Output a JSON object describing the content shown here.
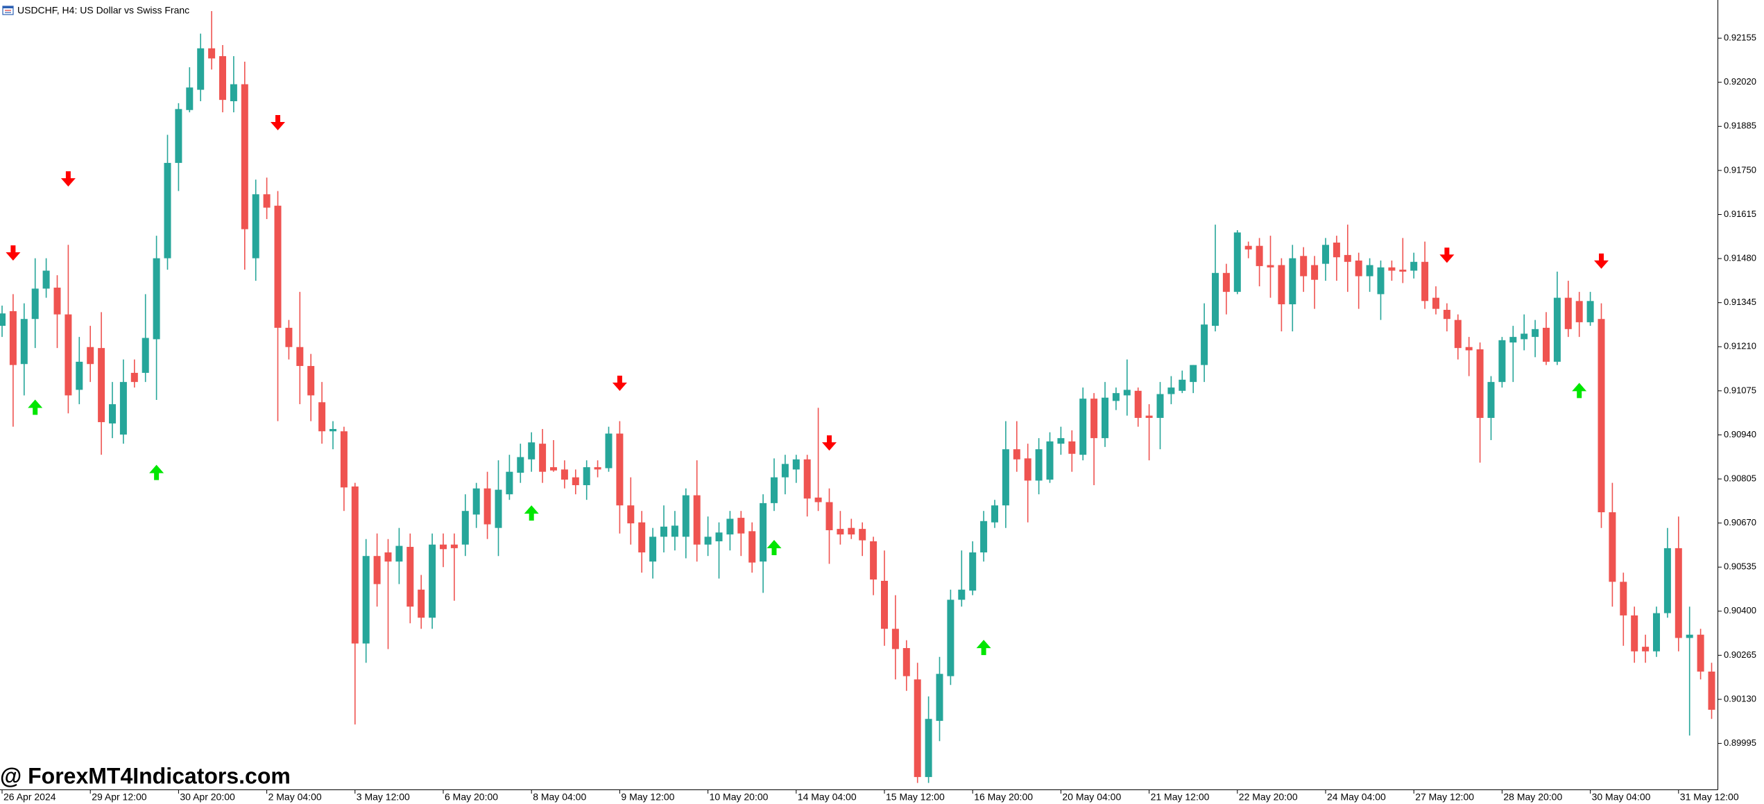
{
  "chart_data": {
    "type": "candlestick",
    "title": "USDCHF, H4:  US Dollar vs Swiss Franc",
    "watermark": "@ ForexMT4Indicators.com",
    "up_color": "#26a69a",
    "down_color": "#ef5350",
    "ylim": [
      0.89854,
      0.92272
    ],
    "yticks": [
      0.92155,
      {
        "value": 0.9202,
        "label": "0.92020"
      },
      0.91885,
      {
        "value": 0.9175,
        "label": "0.91750"
      },
      0.91615,
      {
        "value": 0.9148,
        "label": "0.91480"
      },
      0.91345,
      {
        "value": 0.9121,
        "label": "0.91210"
      },
      0.91075,
      {
        "value": 0.9094,
        "label": "0.90940"
      },
      0.90805,
      {
        "value": 0.9067,
        "label": "0.90670"
      },
      0.90535,
      {
        "value": 0.904,
        "label": "0.90400"
      },
      0.90265,
      {
        "value": 0.9013,
        "label": "0.90130"
      },
      0.89995
    ],
    "categories": [
      "26 Apr 2024",
      null,
      null,
      null,
      null,
      null,
      null,
      null,
      "29 Apr 12:00",
      null,
      null,
      null,
      null,
      null,
      null,
      null,
      "30 Apr 20:00",
      null,
      null,
      null,
      null,
      null,
      null,
      null,
      "2 May 04:00",
      null,
      null,
      null,
      null,
      null,
      null,
      null,
      "3 May 12:00",
      null,
      null,
      null,
      null,
      null,
      null,
      null,
      "6 May 20:00",
      null,
      null,
      null,
      null,
      null,
      null,
      null,
      "8 May 04:00",
      null,
      null,
      null,
      null,
      null,
      null,
      null,
      "9 May 12:00",
      null,
      null,
      null,
      null,
      null,
      null,
      null,
      "10 May 20:00",
      null,
      null,
      null,
      null,
      null,
      null,
      null,
      "14 May 04:00",
      null,
      null,
      null,
      null,
      null,
      null,
      null,
      "15 May 12:00",
      null,
      null,
      null,
      null,
      null,
      null,
      null,
      "16 May 20:00",
      null,
      null,
      null,
      null,
      null,
      null,
      null,
      "20 May 04:00",
      null,
      null,
      null,
      null,
      null,
      null,
      null,
      "21 May 12:00",
      null,
      null,
      null,
      null,
      null,
      null,
      null,
      "22 May 20:00",
      null,
      null,
      null,
      null,
      null,
      null,
      null,
      "24 May 04:00",
      null,
      null,
      null,
      null,
      null,
      null,
      null,
      "27 May 12:00",
      null,
      null,
      null,
      null,
      null,
      null,
      null,
      "28 May 20:00",
      null,
      null,
      null,
      null,
      null,
      null,
      null,
      "30 May 04:00",
      null,
      null,
      null,
      null,
      null,
      null,
      null,
      "31 May 12:00",
      null,
      null,
      null
    ],
    "open": [
      0.91274,
      0.91319,
      0.91157,
      0.91295,
      0.91388,
      0.91391,
      0.91309,
      0.91078,
      0.91209,
      0.91206,
      0.90975,
      0.90941,
      0.9113,
      0.9113,
      0.91233,
      0.91481,
      0.91773,
      0.91935,
      0.91997,
      0.92124,
      0.921,
      0.91962,
      0.92014,
      0.91481,
      0.91677,
      0.91642,
      0.91268,
      0.91209,
      0.91151,
      0.9104,
      0.90951,
      0.90951,
      0.90782,
      0.90301,
      0.90569,
      0.9058,
      0.90552,
      0.90597,
      0.90466,
      0.9038,
      0.90604,
      0.90604,
      0.90604,
      0.90696,
      0.90776,
      0.90655,
      0.90758,
      0.90824,
      0.90865,
      0.90913,
      0.90841,
      0.90834,
      0.9081,
      0.90786,
      0.90841,
      0.90838,
      0.90944,
      0.90724,
      0.90672,
      0.90552,
      0.90628,
      0.90628,
      0.90628,
      0.90755,
      0.90604,
      0.90614,
      0.90635,
      0.90686,
      0.90645,
      0.90552,
      0.90731,
      0.9081,
      0.90834,
      0.90865,
      0.90748,
      0.90734,
      0.90652,
      0.90655,
      0.90652,
      0.90614,
      0.90493,
      0.90346,
      0.90287,
      0.90191,
      0.89892,
      0.90064,
      0.90201,
      0.90435,
      0.90463,
      0.9058,
      0.90672,
      0.90724,
      0.90896,
      0.90868,
      0.908,
      0.90803,
      0.90913,
      0.9092,
      0.90879,
      0.91051,
      0.9093,
      0.91044,
      0.91061,
      0.91075,
      0.90999,
      0.90992,
      0.91065,
      0.91075,
      0.91102,
      0.91154,
      0.91274,
      0.91436,
      0.91378,
      0.91519,
      0.91519,
      0.9146,
      0.9146,
      0.9134,
      0.91488,
      0.9146,
      0.91464,
      0.91529,
      0.91491,
      0.91474,
      0.91426,
      0.91371,
      0.91453,
      0.91446,
      0.91443,
      0.9147,
      0.9136,
      0.91323,
      0.91292,
      0.91209,
      0.91202,
      0.90992,
      0.91102,
      0.91223,
      0.91233,
      0.9124,
      0.91268,
      0.91164,
      0.9136,
      0.9135,
      0.91285,
      0.91295,
      0.90703,
      0.9049,
      0.90387,
      0.90291,
      0.90277,
      0.90394,
      0.90593,
      0.90318,
      0.90328,
      0.90215
    ],
    "high": [
      0.91336,
      0.91371,
      0.91343,
      0.91481,
      0.91481,
      0.91429,
      0.91522,
      0.9124,
      0.91274,
      0.91316,
      0.91102,
      0.91171,
      0.91171,
      0.91371,
      0.9155,
      0.91859,
      0.91956,
      0.92066,
      0.92169,
      0.92238,
      0.92134,
      0.921,
      0.92083,
      0.91722,
      0.91728,
      0.91687,
      0.91292,
      0.91378,
      0.91188,
      0.91102,
      0.90982,
      0.90965,
      0.90793,
      0.90621,
      0.90638,
      0.90621,
      0.90655,
      0.90638,
      0.90511,
      0.90638,
      0.90638,
      0.90638,
      0.90758,
      0.90793,
      0.90827,
      0.90862,
      0.90879,
      0.90913,
      0.90948,
      0.90958,
      0.90924,
      0.90862,
      0.90834,
      0.90862,
      0.90862,
      0.90965,
      0.90982,
      0.9081,
      0.90707,
      0.90655,
      0.90724,
      0.90707,
      0.90776,
      0.90862,
      0.9069,
      0.90672,
      0.90707,
      0.90707,
      0.90672,
      0.90758,
      0.90868,
      0.90879,
      0.90879,
      0.90879,
      0.91023,
      0.90776,
      0.90707,
      0.90683,
      0.90672,
      0.90628,
      0.90586,
      0.90449,
      0.90311,
      0.90242,
      0.90139,
      0.9026,
      0.90466,
      0.90586,
      0.90614,
      0.90707,
      0.90741,
      0.90982,
      0.90982,
      0.90913,
      0.9093,
      0.90948,
      0.90965,
      0.90954,
      0.91085,
      0.91068,
      0.91102,
      0.91085,
      0.91171,
      0.91085,
      0.91034,
      0.91102,
      0.9112,
      0.91137,
      0.91154,
      0.91343,
      0.91584,
      0.91464,
      0.91567,
      0.91532,
      0.91543,
      0.9155,
      0.91481,
      0.91522,
      0.91515,
      0.91488,
      0.91543,
      0.9155,
      0.91584,
      0.91498,
      0.91481,
      0.91474,
      0.91474,
      0.91543,
      0.91498,
      0.91532,
      0.91395,
      0.91343,
      0.91309,
      0.9124,
      0.91223,
      0.9112,
      0.9124,
      0.91274,
      0.91309,
      0.91292,
      0.91316,
      0.9144,
      0.91412,
      0.91378,
      0.91378,
      0.91343,
      0.90793,
      0.90518,
      0.90414,
      0.90328,
      0.90414,
      0.90655,
      0.9069,
      0.90414,
      0.90346,
      0.90242
    ],
    "low": [
      0.9124,
      0.90965,
      0.91061,
      0.91206,
      0.9136,
      0.91206,
      0.91006,
      0.91034,
      0.91102,
      0.90879,
      0.9093,
      0.90913,
      0.91085,
      0.91102,
      0.91047,
      0.91446,
      0.91687,
      0.91928,
      0.91962,
      0.92059,
      0.91928,
      0.91928,
      0.91446,
      0.91412,
      0.91601,
      0.90982,
      0.91171,
      0.91034,
      0.90982,
      0.90913,
      0.90896,
      0.90707,
      0.90053,
      0.90242,
      0.90414,
      0.90284,
      0.90483,
      0.90363,
      0.90346,
      0.90346,
      0.90535,
      0.90432,
      0.90569,
      0.90655,
      0.90621,
      0.90569,
      0.90741,
      0.90793,
      0.90827,
      0.90793,
      0.90827,
      0.90776,
      0.90758,
      0.90741,
      0.9081,
      0.90827,
      0.90638,
      0.90604,
      0.90518,
      0.905,
      0.9058,
      0.90586,
      0.90562,
      0.90552,
      0.90569,
      0.905,
      0.90586,
      0.90569,
      0.90518,
      0.90456,
      0.90707,
      0.90758,
      0.90793,
      0.9069,
      0.90707,
      0.90545,
      0.90604,
      0.90621,
      0.90569,
      0.90449,
      0.90294,
      0.90191,
      0.90156,
      0.89874,
      0.89874,
      0.90002,
      0.90174,
      0.90414,
      0.90449,
      0.90552,
      0.90655,
      0.90655,
      0.90827,
      0.90672,
      0.90758,
      0.90793,
      0.90879,
      0.90827,
      0.90862,
      0.90786,
      0.90903,
      0.91016,
      0.90999,
      0.90965,
      0.90862,
      0.90896,
      0.91034,
      0.91068,
      0.91068,
      0.91102,
      0.91257,
      0.91309,
      0.91371,
      0.91481,
      0.91395,
      0.9136,
      0.91257,
      0.91257,
      0.91378,
      0.91326,
      0.91412,
      0.91412,
      0.91378,
      0.91326,
      0.91378,
      0.91292,
      0.91412,
      0.91405,
      0.91419,
      0.91326,
      0.91309,
      0.91257,
      0.91171,
      0.9112,
      0.90855,
      0.90924,
      0.91085,
      0.91102,
      0.91199,
      0.91178,
      0.91154,
      0.91154,
      0.9124,
      0.9124,
      0.91274,
      0.90655,
      0.90414,
      0.90294,
      0.90242,
      0.90242,
      0.9026,
      0.9038,
      0.90277,
      0.90019,
      0.90191,
      0.9007
    ],
    "close": [
      0.91312,
      0.91154,
      0.91295,
      0.91388,
      0.91443,
      0.91309,
      0.91061,
      0.91164,
      0.91157,
      0.90979,
      0.91034,
      0.91102,
      0.91102,
      0.91237,
      0.91481,
      0.91773,
      0.91938,
      0.92004,
      0.92124,
      0.92093,
      0.91966,
      0.92014,
      0.9157,
      0.91677,
      0.91636,
      0.91268,
      0.91209,
      0.91151,
      0.91061,
      0.90951,
      0.90958,
      0.90779,
      0.90301,
      0.90569,
      0.90483,
      0.90552,
      0.906,
      0.90414,
      0.9038,
      0.90604,
      0.9059,
      0.90593,
      0.90707,
      0.90776,
      0.90666,
      0.90772,
      0.90827,
      0.90872,
      0.90917,
      0.90827,
      0.90831,
      0.90803,
      0.90786,
      0.90841,
      0.90834,
      0.90944,
      0.90724,
      0.90669,
      0.9058,
      0.90628,
      0.90659,
      0.90662,
      0.90755,
      0.90604,
      0.90628,
      0.90641,
      0.90683,
      0.90638,
      0.90549,
      0.90731,
      0.9081,
      0.90851,
      0.90865,
      0.90745,
      0.90734,
      0.90648,
      0.90635,
      0.90635,
      0.90617,
      0.90497,
      0.90346,
      0.90284,
      0.90201,
      0.89892,
      0.9007,
      0.90208,
      0.90435,
      0.90466,
      0.9058,
      0.90676,
      0.90724,
      0.90896,
      0.90865,
      0.908,
      0.90896,
      0.9092,
      0.9093,
      0.90882,
      0.91051,
      0.9093,
      0.91054,
      0.91068,
      0.91078,
      0.90992,
      0.90992,
      0.91065,
      0.91085,
      0.91109,
      0.91154,
      0.91278,
      0.91436,
      0.91378,
      0.9156,
      0.91508,
      0.91457,
      0.91453,
      0.9134,
      0.91481,
      0.91426,
      0.91415,
      0.91522,
      0.91484,
      0.9147,
      0.91426,
      0.9146,
      0.91453,
      0.91443,
      0.9144,
      0.9147,
      0.9135,
      0.91326,
      0.91295,
      0.91206,
      0.91199,
      0.90992,
      0.91102,
      0.9123,
      0.9124,
      0.9125,
      0.91264,
      0.91164,
      0.9136,
      0.91264,
      0.91285,
      0.9135,
      0.90703,
      0.9049,
      0.90387,
      0.90277,
      0.90277,
      0.90394,
      0.90593,
      0.90318,
      0.90328,
      0.90215,
      0.90098
    ],
    "sell_signals": {
      "color": "#ff0000",
      "values": [
        null,
        0.91495,
        null,
        null,
        null,
        null,
        0.91722,
        null,
        null,
        null,
        null,
        null,
        null,
        null,
        null,
        null,
        null,
        null,
        null,
        null,
        null,
        null,
        null,
        null,
        null,
        0.91894,
        null,
        null,
        null,
        null,
        null,
        null,
        null,
        null,
        null,
        null,
        null,
        null,
        null,
        null,
        null,
        null,
        null,
        null,
        null,
        null,
        null,
        null,
        null,
        null,
        null,
        null,
        null,
        null,
        null,
        null,
        0.91096,
        null,
        null,
        null,
        null,
        null,
        null,
        null,
        null,
        null,
        null,
        null,
        null,
        null,
        null,
        null,
        null,
        null,
        null,
        0.90913,
        null,
        null,
        null,
        null,
        null,
        null,
        null,
        null,
        null,
        null,
        null,
        null,
        null,
        null,
        null,
        null,
        null,
        null,
        null,
        null,
        null,
        null,
        null,
        null,
        null,
        null,
        null,
        null,
        null,
        null,
        null,
        null,
        null,
        null,
        null,
        null,
        null,
        null,
        null,
        null,
        null,
        null,
        null,
        null,
        null,
        null,
        null,
        null,
        null,
        null,
        null,
        null,
        null,
        null,
        null,
        0.91488,
        null,
        null,
        null,
        null,
        null,
        null,
        null,
        null,
        null,
        null,
        null,
        null,
        null,
        0.9147,
        null,
        null,
        null,
        null,
        null,
        null,
        null,
        null,
        null,
        null
      ]
    },
    "buy_signals": {
      "color": "#00e600",
      "values": [
        null,
        null,
        null,
        0.91027,
        null,
        null,
        null,
        null,
        null,
        null,
        null,
        null,
        null,
        null,
        0.90827,
        null,
        null,
        null,
        null,
        null,
        null,
        null,
        null,
        null,
        null,
        null,
        null,
        null,
        null,
        null,
        null,
        null,
        null,
        null,
        null,
        null,
        null,
        null,
        null,
        null,
        null,
        null,
        null,
        null,
        null,
        null,
        null,
        null,
        0.90703,
        null,
        null,
        null,
        null,
        null,
        null,
        null,
        null,
        null,
        null,
        null,
        null,
        null,
        null,
        null,
        null,
        null,
        null,
        null,
        null,
        null,
        0.90597,
        null,
        null,
        null,
        null,
        null,
        null,
        null,
        null,
        null,
        null,
        null,
        null,
        null,
        null,
        null,
        null,
        null,
        null,
        0.90291,
        null,
        null,
        null,
        null,
        null,
        null,
        null,
        null,
        null,
        null,
        null,
        null,
        null,
        null,
        null,
        null,
        null,
        null,
        null,
        null,
        null,
        null,
        null,
        null,
        null,
        null,
        null,
        null,
        null,
        null,
        null,
        null,
        null,
        null,
        null,
        null,
        null,
        null,
        null,
        null,
        null,
        null,
        null,
        null,
        null,
        null,
        null,
        null,
        null,
        null,
        null,
        null,
        null,
        0.91078,
        null,
        null,
        null,
        null,
        null,
        null,
        null,
        null,
        null,
        null,
        null,
        null
      ]
    }
  }
}
